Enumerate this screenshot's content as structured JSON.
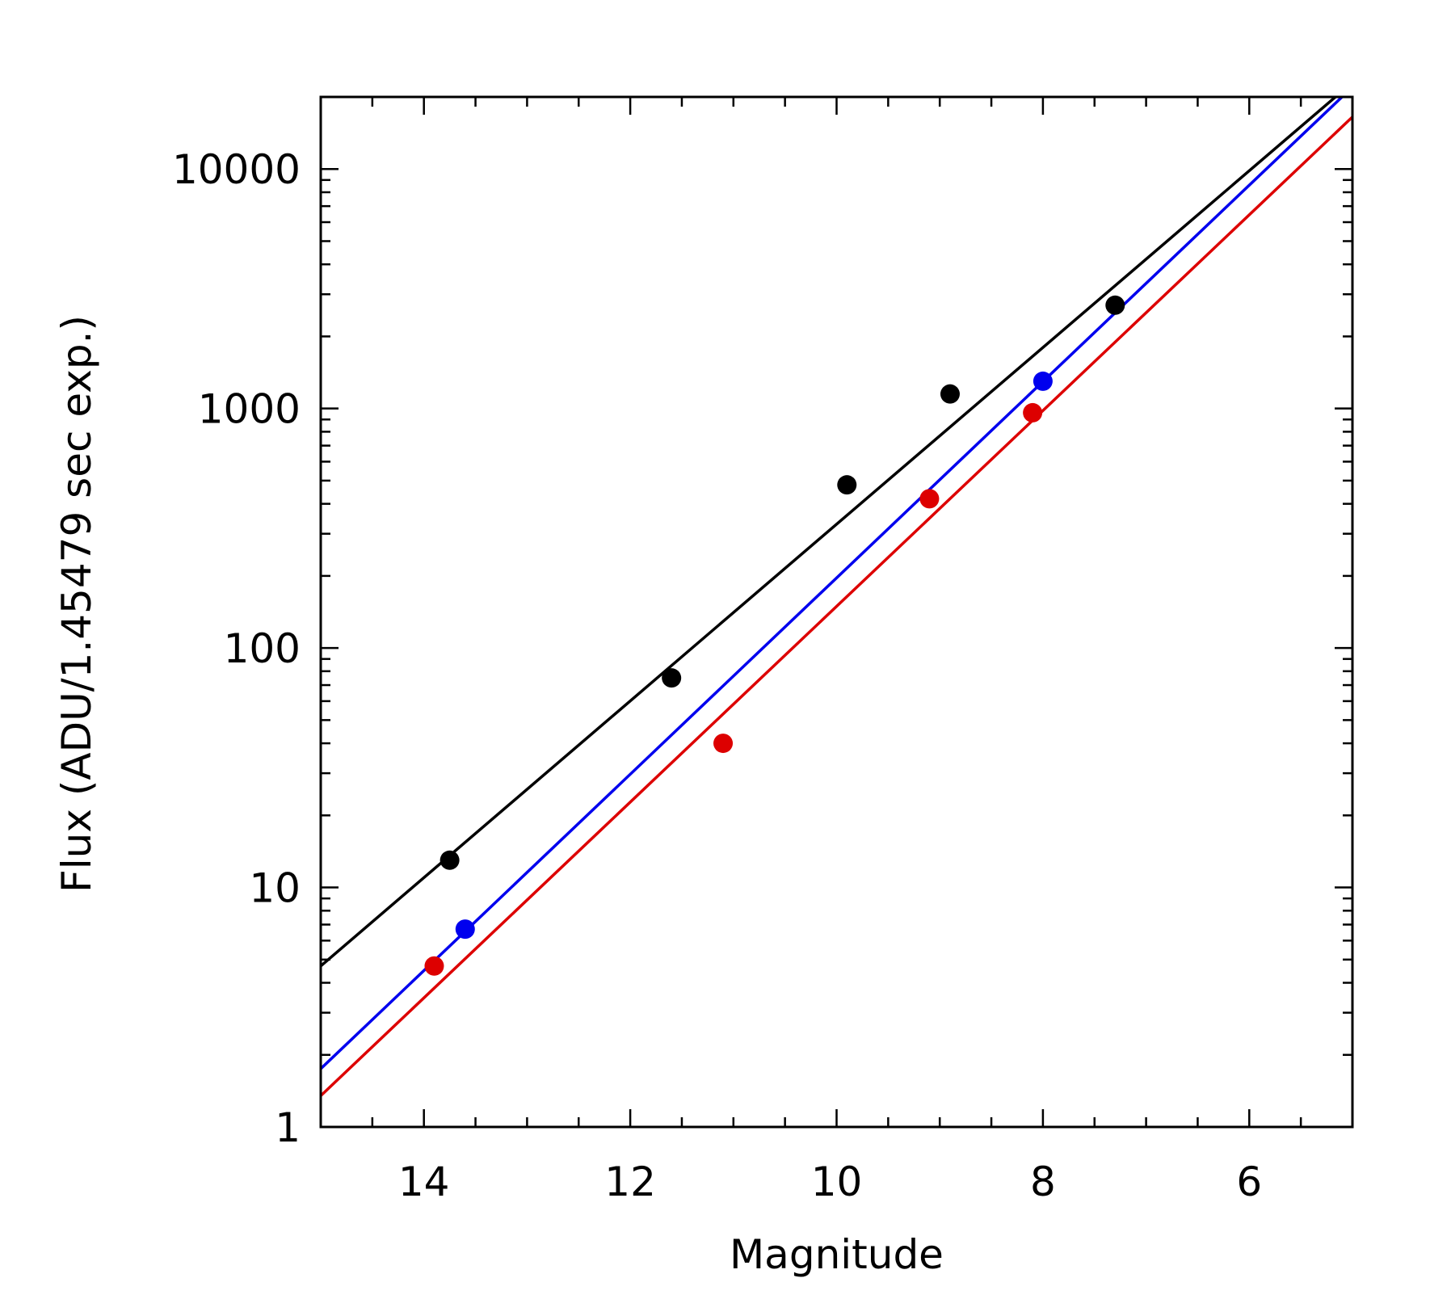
{
  "chart_data": {
    "type": "scatter",
    "xlabel": "Magnitude",
    "ylabel": "Flux (ADU/1.45479 sec exp.)",
    "xlim": [
      15,
      5
    ],
    "ylim": [
      1,
      20000
    ],
    "yscale": "log",
    "x_ticks": [
      14,
      12,
      10,
      8,
      6
    ],
    "x_tick_labels": [
      "14",
      "12",
      "10",
      "8",
      "6"
    ],
    "y_ticks": [
      1,
      10,
      100,
      1000,
      10000
    ],
    "y_tick_labels": [
      "1",
      "10",
      "100",
      "1000",
      "10000"
    ],
    "grid": false,
    "series": [
      {
        "color": "#000000",
        "points": [
          {
            "x": 13.75,
            "y": 13
          },
          {
            "x": 11.6,
            "y": 75
          },
          {
            "x": 9.9,
            "y": 480
          },
          {
            "x": 8.9,
            "y": 1150
          },
          {
            "x": 7.3,
            "y": 2700
          }
        ],
        "fit": {
          "x": [
            15,
            5
          ],
          "y": [
            4.7,
            23000
          ]
        }
      },
      {
        "color": "#0000ee",
        "points": [
          {
            "x": 13.6,
            "y": 6.7
          },
          {
            "x": 8.0,
            "y": 1300
          }
        ],
        "fit": {
          "x": [
            15,
            5
          ],
          "y": [
            1.75,
            22000
          ]
        }
      },
      {
        "color": "#dd0000",
        "points": [
          {
            "x": 13.9,
            "y": 4.7
          },
          {
            "x": 11.1,
            "y": 40
          },
          {
            "x": 9.1,
            "y": 420
          },
          {
            "x": 8.1,
            "y": 960
          }
        ],
        "fit": {
          "x": [
            15,
            5
          ],
          "y": [
            1.35,
            16500
          ]
        }
      }
    ]
  }
}
